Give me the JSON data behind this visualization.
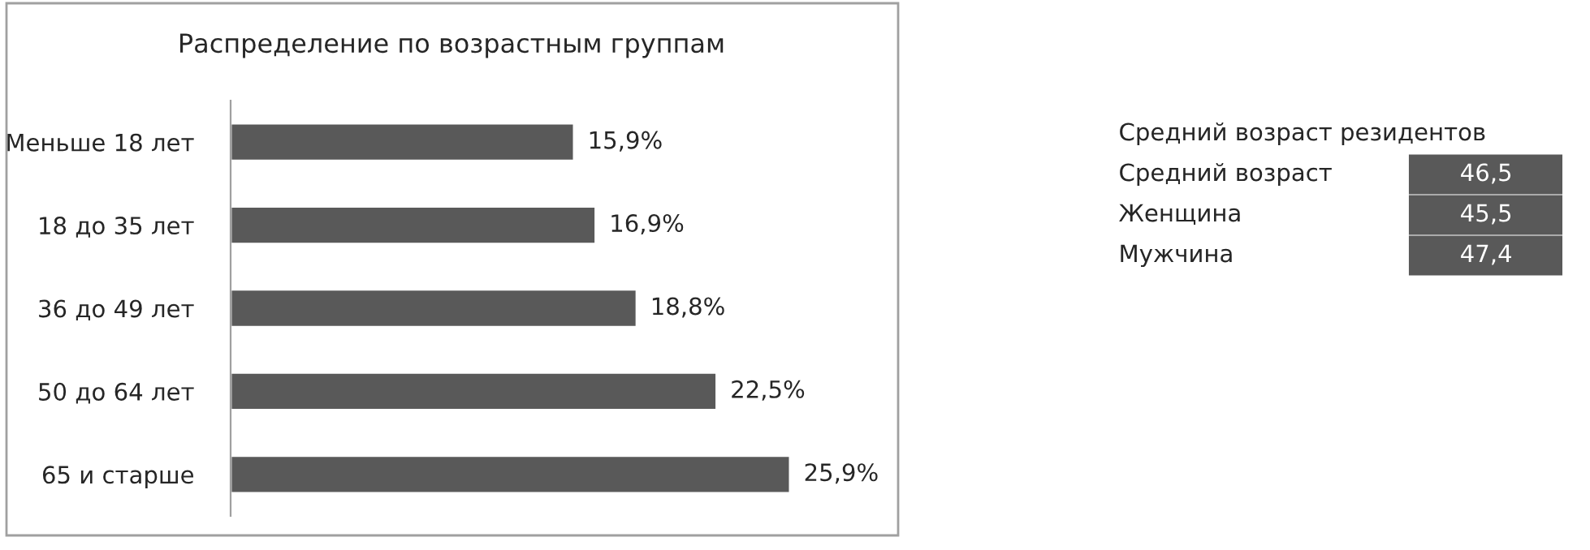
{
  "chart_data": [
    {
      "type": "bar",
      "orientation": "horizontal",
      "title": "Распределение по возрастным группам",
      "categories": [
        "Меньше 18 лет",
        "18 до 35 лет",
        "36 до 49 лет",
        "50 до 64 лет",
        "65 и старше"
      ],
      "values": [
        15.9,
        16.9,
        18.8,
        22.5,
        25.9
      ],
      "value_labels": [
        "15,9%",
        "16,9%",
        "18,8%",
        "22,5%",
        "25,9%"
      ],
      "color": "#595959",
      "grid": false,
      "legend": false
    },
    {
      "type": "other",
      "title": "Средний возраст резидентов",
      "categories": [
        "Средний возраст",
        "Женщина",
        "Мужчина"
      ],
      "value_labels": [
        "46,5",
        "45,5",
        "47,4"
      ],
      "color": "#595959"
    }
  ]
}
